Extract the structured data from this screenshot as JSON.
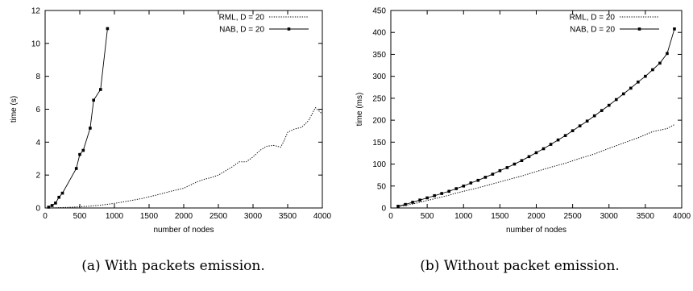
{
  "chart_data": [
    {
      "type": "line",
      "caption": "(a) With packets emission.",
      "xlabel": "number of nodes",
      "ylabel": "time (s)",
      "xlim": [
        0,
        4000
      ],
      "ylim": [
        0,
        12
      ],
      "xticks": [
        0,
        500,
        1000,
        1500,
        2000,
        2500,
        3000,
        3500,
        4000
      ],
      "yticks": [
        0,
        2,
        4,
        6,
        8,
        10,
        12
      ],
      "grid": false,
      "legend_position": "top-right",
      "series": [
        {
          "name": "RML, D = 20",
          "style": "dotted",
          "x": [
            50,
            200,
            400,
            600,
            800,
            1000,
            1200,
            1400,
            1600,
            1800,
            2000,
            2100,
            2200,
            2300,
            2400,
            2500,
            2600,
            2700,
            2800,
            2900,
            3000,
            3100,
            3200,
            3300,
            3400,
            3450,
            3500,
            3600,
            3700,
            3800,
            3900,
            3950,
            4000
          ],
          "y": [
            0.0,
            0.02,
            0.05,
            0.1,
            0.17,
            0.28,
            0.42,
            0.58,
            0.78,
            1.0,
            1.2,
            1.4,
            1.6,
            1.75,
            1.85,
            2.0,
            2.25,
            2.5,
            2.8,
            2.8,
            3.1,
            3.5,
            3.75,
            3.8,
            3.7,
            4.1,
            4.6,
            4.8,
            4.9,
            5.3,
            6.1,
            5.9,
            5.7
          ]
        },
        {
          "name": "NAB, D = 20",
          "style": "solid-square",
          "x": [
            50,
            100,
            150,
            200,
            250,
            450,
            500,
            550,
            650,
            700,
            800,
            900
          ],
          "y": [
            0.05,
            0.15,
            0.3,
            0.65,
            0.9,
            2.4,
            3.25,
            3.5,
            4.85,
            6.55,
            7.2,
            10.9
          ]
        }
      ]
    },
    {
      "type": "line",
      "caption": "(b) Without packet emission.",
      "xlabel": "number of nodes",
      "ylabel": "time (ms)",
      "xlim": [
        0,
        4000
      ],
      "ylim": [
        0,
        450
      ],
      "xticks": [
        0,
        500,
        1000,
        1500,
        2000,
        2500,
        3000,
        3500,
        4000
      ],
      "yticks": [
        0,
        50,
        100,
        150,
        200,
        250,
        300,
        350,
        400,
        450
      ],
      "grid": false,
      "legend_position": "top-right",
      "series": [
        {
          "name": "RML, D = 20",
          "style": "dotted",
          "x": [
            100,
            200,
            300,
            400,
            500,
            600,
            700,
            800,
            900,
            1000,
            1200,
            1400,
            1600,
            1800,
            2000,
            2200,
            2400,
            2600,
            2800,
            3000,
            3200,
            3400,
            3600,
            3800,
            3900
          ],
          "y": [
            3,
            6,
            9,
            13,
            17,
            21,
            25,
            29,
            34,
            38,
            46,
            55,
            64,
            73,
            83,
            93,
            102,
            113,
            123,
            136,
            148,
            160,
            174,
            181,
            190
          ]
        },
        {
          "name": "NAB, D = 20",
          "style": "solid-square",
          "x": [
            100,
            200,
            300,
            400,
            500,
            600,
            700,
            800,
            900,
            1000,
            1100,
            1200,
            1300,
            1400,
            1500,
            1600,
            1700,
            1800,
            1900,
            2000,
            2100,
            2200,
            2300,
            2400,
            2500,
            2600,
            2700,
            2800,
            2900,
            3000,
            3100,
            3200,
            3300,
            3400,
            3500,
            3600,
            3700,
            3800,
            3900
          ],
          "y": [
            4,
            8,
            13,
            18,
            23,
            28,
            33,
            38,
            44,
            50,
            57,
            63,
            70,
            77,
            85,
            92,
            100,
            108,
            117,
            126,
            135,
            145,
            155,
            165,
            176,
            187,
            198,
            210,
            222,
            234,
            247,
            260,
            273,
            287,
            300,
            315,
            330,
            352,
            408
          ]
        }
      ]
    }
  ]
}
